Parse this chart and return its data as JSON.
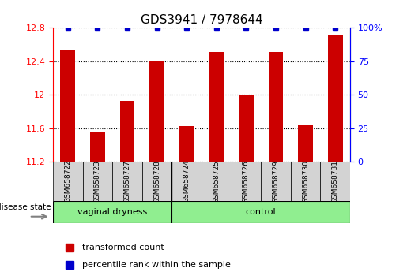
{
  "title": "GDS3941 / 7978644",
  "samples": [
    "GSM658722",
    "GSM658723",
    "GSM658727",
    "GSM658728",
    "GSM658724",
    "GSM658725",
    "GSM658726",
    "GSM658729",
    "GSM658730",
    "GSM658731"
  ],
  "bar_values": [
    12.53,
    11.55,
    11.93,
    12.41,
    11.63,
    12.51,
    11.99,
    12.51,
    11.65,
    12.72
  ],
  "groups": [
    {
      "label": "vaginal dryness",
      "start": 0,
      "end": 4,
      "color": "#90EE90"
    },
    {
      "label": "control",
      "start": 4,
      "end": 10,
      "color": "#90EE90"
    }
  ],
  "ylim": [
    11.2,
    12.8
  ],
  "yticks": [
    11.2,
    11.6,
    12.0,
    12.4,
    12.8
  ],
  "right_yticks": [
    0,
    25,
    50,
    75,
    100
  ],
  "bar_color": "#CC0000",
  "dot_color": "#0000CC",
  "sample_area_color": "#d3d3d3",
  "legend_items": [
    {
      "label": "transformed count",
      "color": "#CC0000"
    },
    {
      "label": "percentile rank within the sample",
      "color": "#0000CC"
    }
  ],
  "disease_state_label": "disease state",
  "n_samples": 10
}
